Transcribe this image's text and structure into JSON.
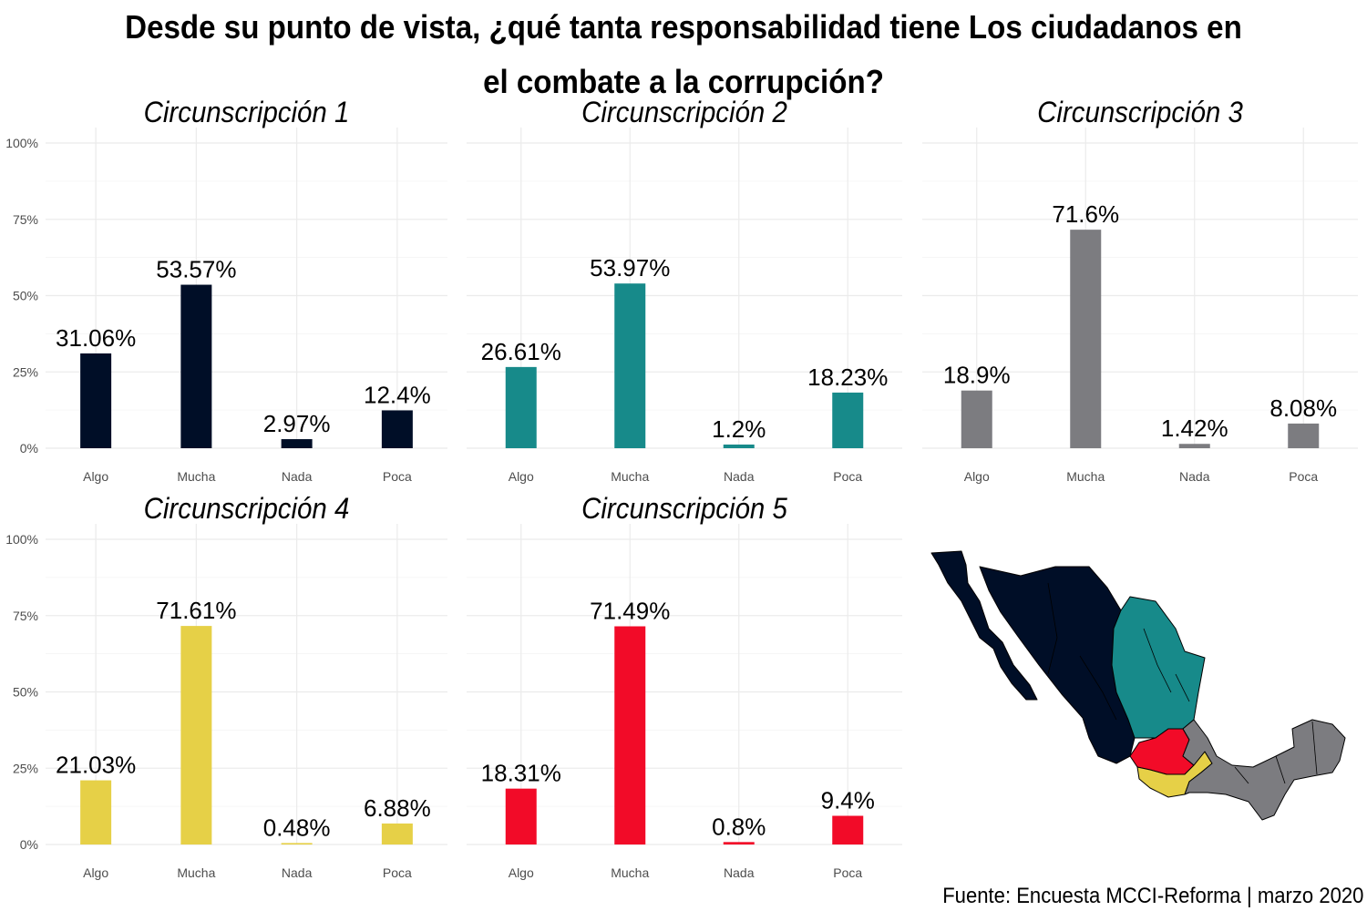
{
  "title_line1": "Desde su punto de vista, ¿qué tanta responsabilidad tiene Los ciudadanos en",
  "title_line2": "el combate a la corrupción?",
  "caption": "Fuente: Encuesta MCCI-Reforma | marzo 2020",
  "chart_data": [
    {
      "type": "bar",
      "title": "Circunscripción 1",
      "categories": [
        "Algo",
        "Mucha",
        "Nada",
        "Poca"
      ],
      "values": [
        31.06,
        53.57,
        2.97,
        12.4
      ],
      "labels": [
        "31.06%",
        "53.57%",
        "2.97%",
        "12.4%"
      ],
      "color": "#000e27",
      "ylim": [
        0,
        100
      ],
      "yticks": [
        "0%",
        "25%",
        "50%",
        "75%",
        "100%"
      ]
    },
    {
      "type": "bar",
      "title": "Circunscripción 2",
      "categories": [
        "Algo",
        "Mucha",
        "Nada",
        "Poca"
      ],
      "values": [
        26.61,
        53.97,
        1.2,
        18.23
      ],
      "labels": [
        "26.61%",
        "53.97%",
        "1.2%",
        "18.23%"
      ],
      "color": "#178a8a",
      "ylim": [
        0,
        100
      ]
    },
    {
      "type": "bar",
      "title": "Circunscripción 3",
      "categories": [
        "Algo",
        "Mucha",
        "Nada",
        "Poca"
      ],
      "values": [
        18.9,
        71.6,
        1.42,
        8.08
      ],
      "labels": [
        "18.9%",
        "71.6%",
        "1.42%",
        "8.08%"
      ],
      "color": "#7c7c80",
      "ylim": [
        0,
        100
      ]
    },
    {
      "type": "bar",
      "title": "Circunscripción 4",
      "categories": [
        "Algo",
        "Mucha",
        "Nada",
        "Poca"
      ],
      "values": [
        21.03,
        71.61,
        0.48,
        6.88
      ],
      "labels": [
        "21.03%",
        "71.61%",
        "0.48%",
        "6.88%"
      ],
      "color": "#e6d047",
      "ylim": [
        0,
        100
      ],
      "yticks": [
        "0%",
        "25%",
        "50%",
        "75%",
        "100%"
      ]
    },
    {
      "type": "bar",
      "title": "Circunscripción 5",
      "categories": [
        "Algo",
        "Mucha",
        "Nada",
        "Poca"
      ],
      "values": [
        18.31,
        71.49,
        0.8,
        9.4
      ],
      "labels": [
        "18.31%",
        "71.49%",
        "0.8%",
        "9.4%"
      ],
      "color": "#f20b28",
      "ylim": [
        0,
        100
      ]
    }
  ],
  "map": {
    "colors": {
      "c1": "#000e27",
      "c2": "#178a8a",
      "c3": "#7c7c80",
      "c4": "#e6d047",
      "c5": "#f20b28"
    }
  }
}
